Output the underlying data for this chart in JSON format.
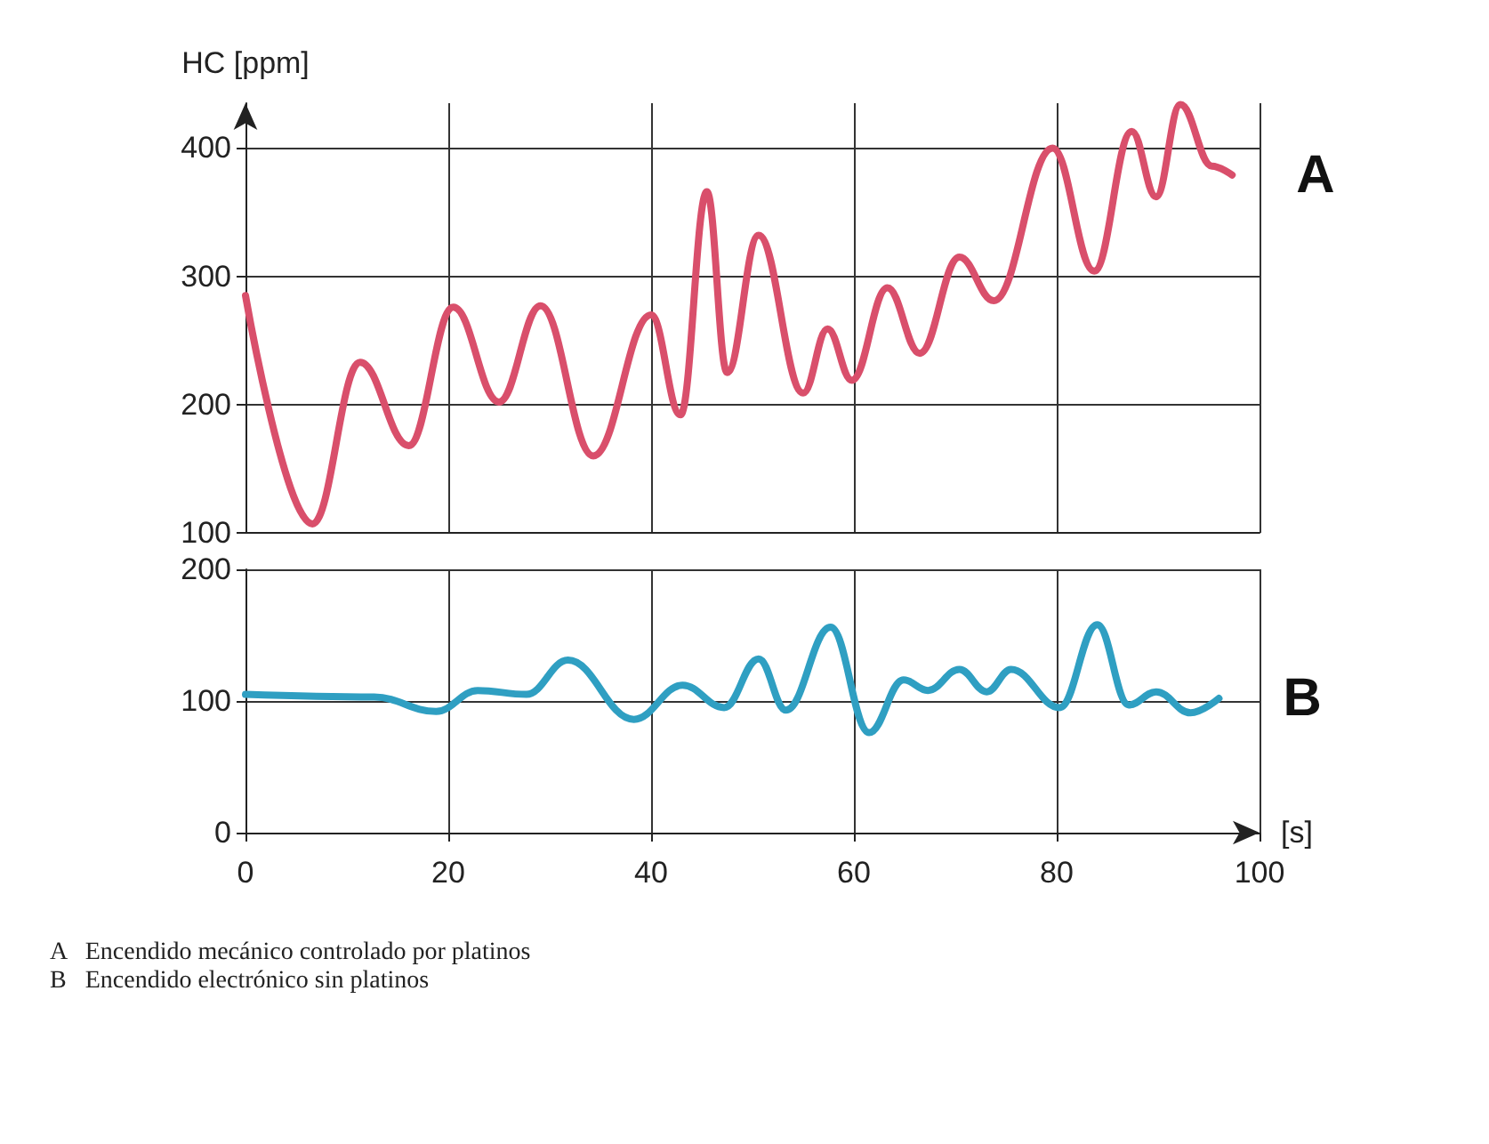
{
  "chart_data": [
    {
      "type": "line",
      "ylabel": "HC [ppm]",
      "x": [
        0,
        6.6,
        11.3,
        16.1,
        20.5,
        25,
        29.1,
        34.3,
        40,
        42.9,
        45.5,
        47.5,
        50.6,
        55,
        57.4,
        59.8,
        63.3,
        66.5,
        70.4,
        73.8,
        79.6,
        83.7,
        87.4,
        89.8,
        92.2,
        95.3,
        97.3
      ],
      "series": [
        {
          "name": "A",
          "color": "#d94f6b",
          "values": [
            285,
            107,
            233,
            168,
            276,
            202,
            277,
            160,
            270,
            192,
            366,
            225,
            332,
            209,
            259,
            219,
            291,
            240,
            315,
            281,
            400,
            304,
            413,
            362,
            434,
            386,
            379
          ]
        }
      ],
      "xlim": [
        0,
        100
      ],
      "xticks": [
        0,
        20,
        40,
        60,
        80,
        100
      ],
      "ylim": [
        100,
        435
      ],
      "yticks": [
        100,
        200,
        300,
        400
      ],
      "grid": true,
      "tick_labels": "y"
    },
    {
      "type": "line",
      "xlabel": "[s]",
      "x": [
        0,
        12.7,
        18.8,
        22.9,
        27.7,
        31.8,
        38.3,
        43.1,
        47.2,
        50.6,
        53.3,
        57.7,
        61.5,
        64.9,
        67.3,
        70.4,
        73.1,
        75.5,
        80.3,
        84,
        87.1,
        89.8,
        93.2,
        96
      ],
      "series": [
        {
          "name": "B",
          "color": "#2f9fc2",
          "values": [
            105,
            103,
            92,
            108,
            105,
            131,
            86,
            112,
            95,
            132,
            93,
            156,
            76,
            116,
            108,
            124,
            107,
            124,
            95,
            158,
            97,
            107,
            91,
            102
          ]
        }
      ],
      "xlim": [
        0,
        100
      ],
      "xticks": [
        0,
        20,
        40,
        60,
        80,
        100
      ],
      "ylim": [
        0,
        200
      ],
      "yticks": [
        0,
        100,
        200
      ],
      "grid": true,
      "annotations": [
        "A   Encendido mecánico controlado por platinos",
        "B   Encendido electrónico sin platinos"
      ]
    }
  ]
}
